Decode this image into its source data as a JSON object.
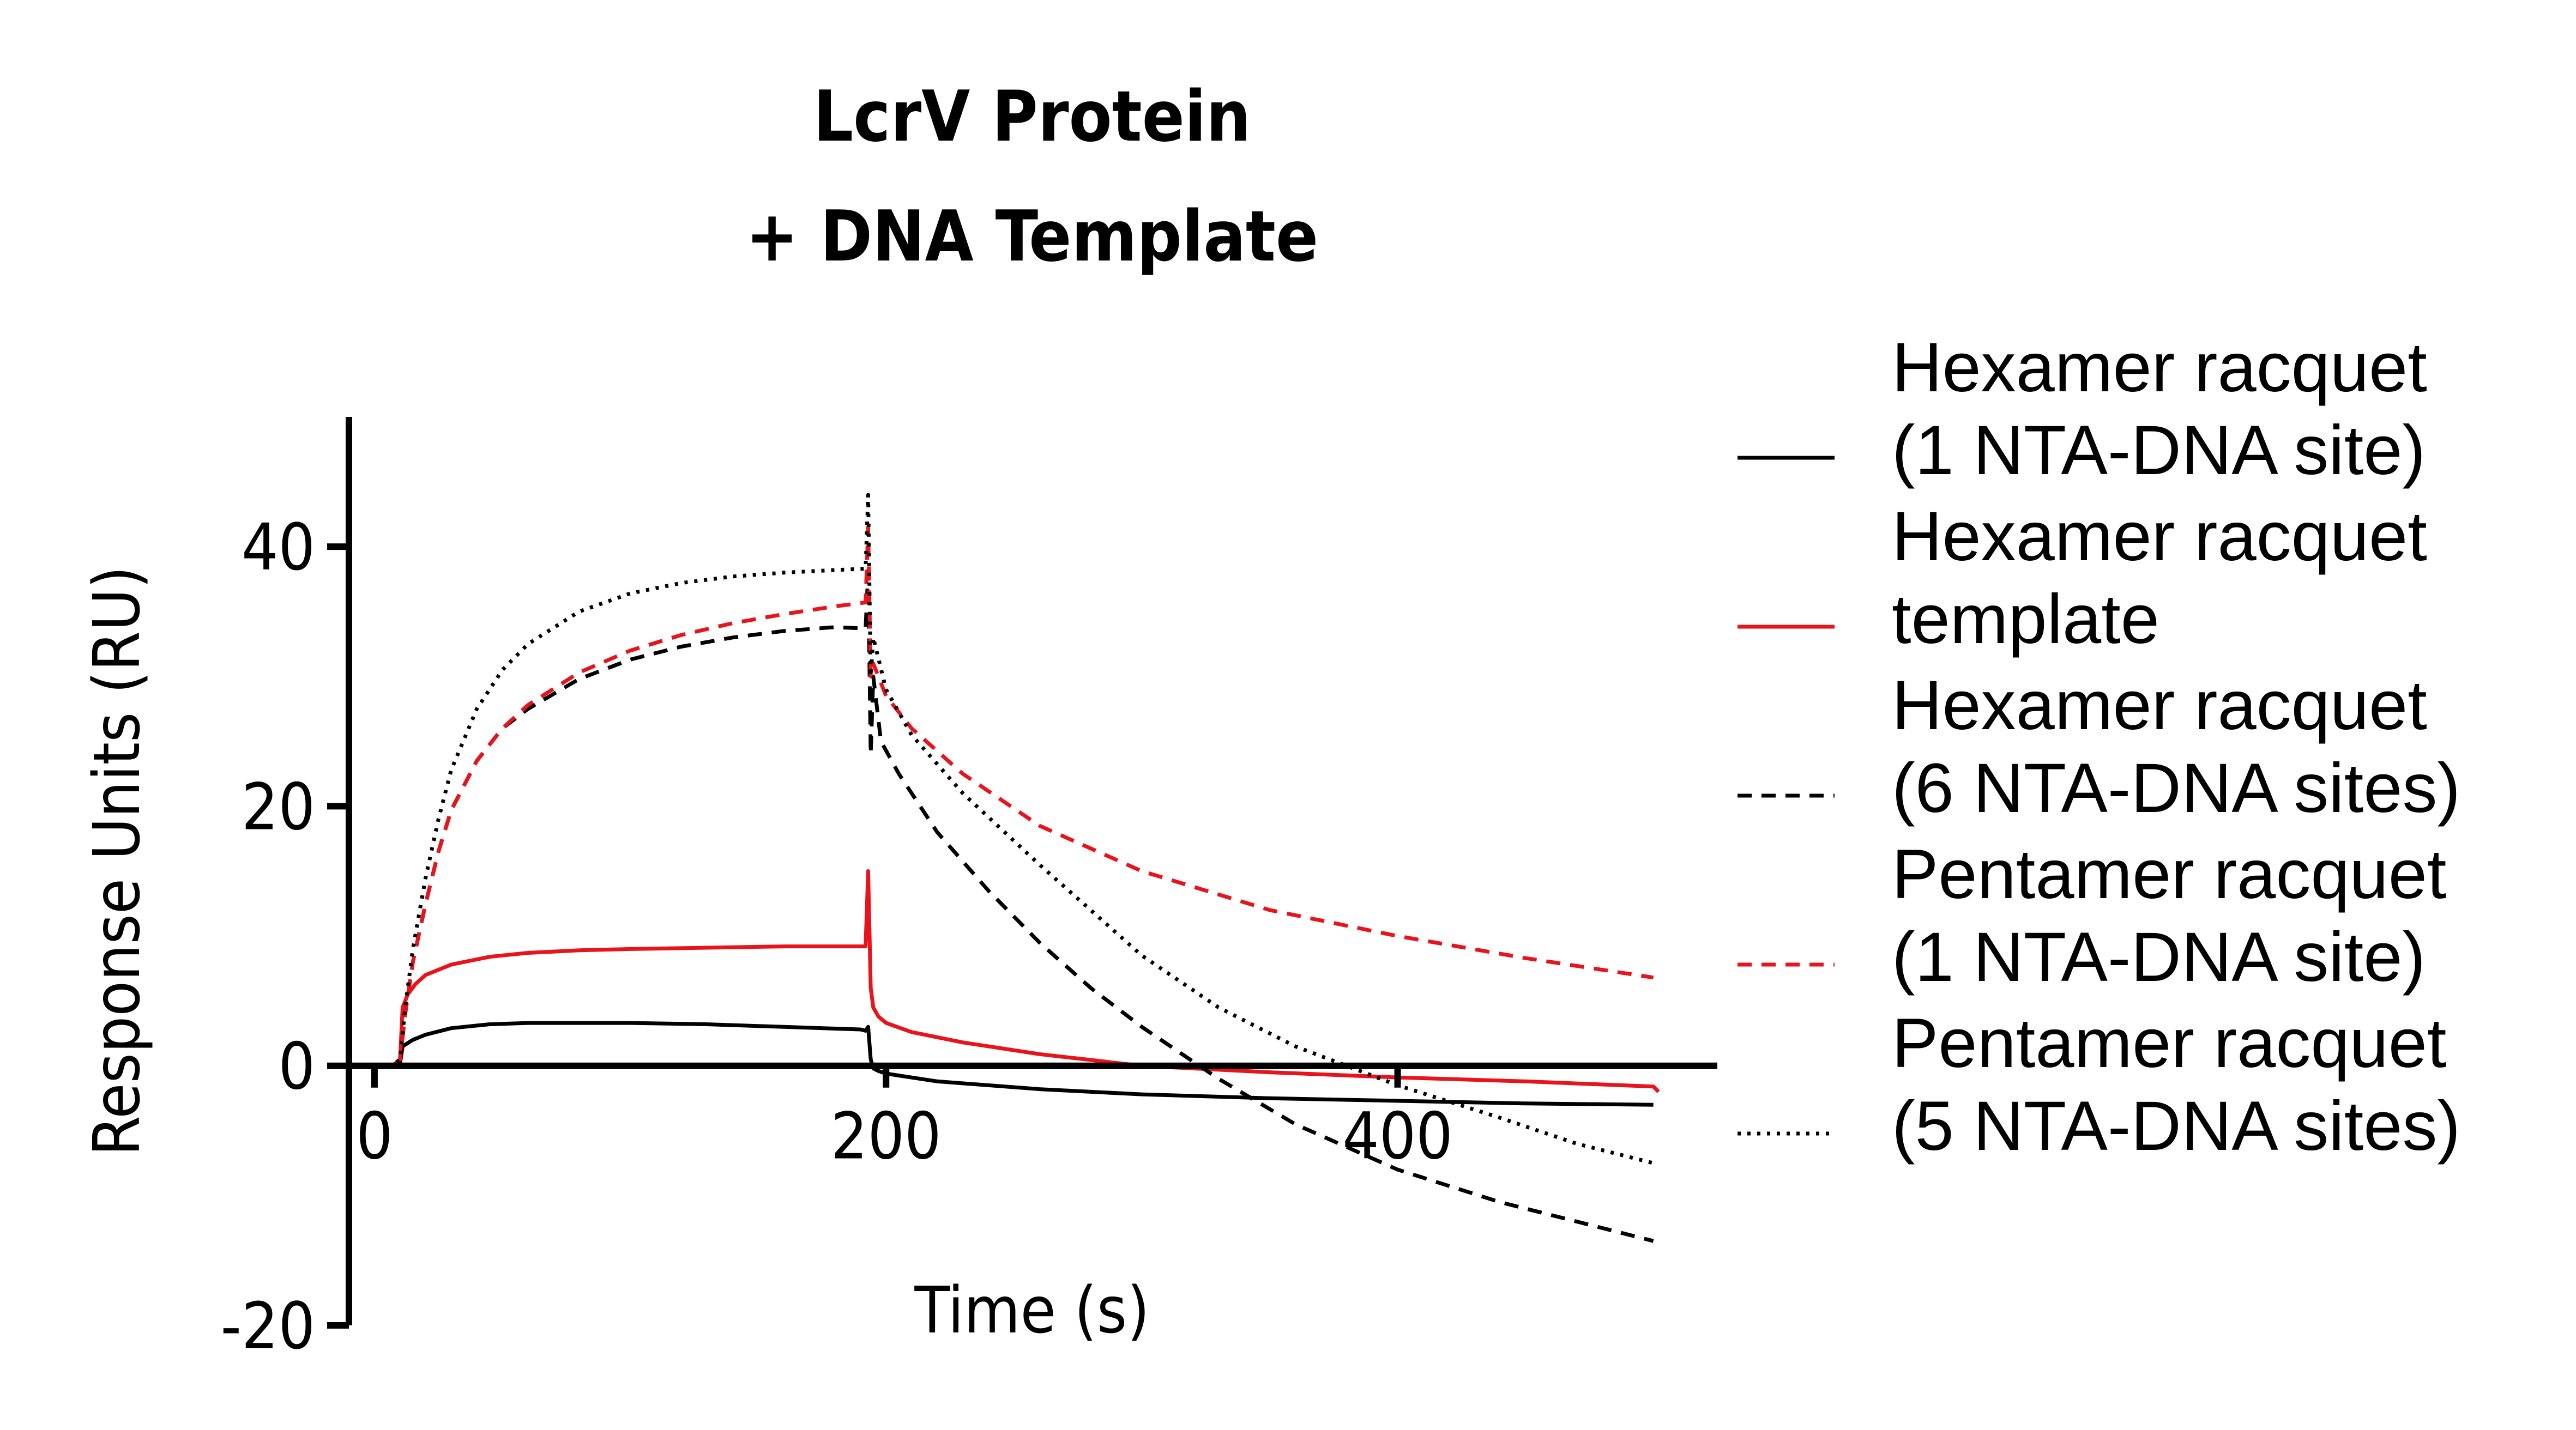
{
  "chart_data": {
    "type": "line",
    "title_lines": [
      "LcrV Protein",
      "+ DNA Template"
    ],
    "xlabel": "Time  (s)",
    "ylabel": "Response Units  (RU)",
    "xlim": [
      -10,
      525
    ],
    "ylim": [
      -20,
      50
    ],
    "xticks": [
      0,
      200,
      400
    ],
    "yticks": [
      -20,
      0,
      20,
      40
    ],
    "x_tick_labels": [
      "0",
      "200",
      "400"
    ],
    "y_tick_labels": [
      "-20",
      "0",
      "20",
      "40"
    ],
    "grid": false,
    "legend_position": "right",
    "series": [
      {
        "name": "Hexamer racquet\n(1 NTA-DNA site)",
        "legend_lines": [
          "Hexamer racquet",
          "(1 NTA-DNA site)"
        ],
        "color": "#000000",
        "dash": "solid",
        "x": [
          -10,
          7,
          10,
          11,
          15,
          20,
          30,
          45,
          60,
          80,
          100,
          130,
          160,
          190,
          192,
          193,
          194,
          195,
          197,
          200,
          220,
          260,
          300,
          350,
          400,
          450,
          500
        ],
        "y": [
          0,
          0,
          0.2,
          1.5,
          2.0,
          2.4,
          2.9,
          3.2,
          3.3,
          3.3,
          3.3,
          3.2,
          3.0,
          2.8,
          2.7,
          3.0,
          0.5,
          -0.2,
          -0.4,
          -0.6,
          -1.2,
          -1.8,
          -2.2,
          -2.5,
          -2.7,
          -2.9,
          -3.0
        ]
      },
      {
        "name": "Hexamer racquet\ntemplate",
        "legend_lines": [
          "Hexamer racquet",
          "template"
        ],
        "color": "#e8131b",
        "dash": "solid",
        "x": [
          -10,
          7,
          10,
          11,
          13,
          16,
          20,
          30,
          45,
          60,
          80,
          100,
          130,
          160,
          190,
          192,
          193,
          194,
          195,
          197,
          200,
          210,
          230,
          260,
          300,
          350,
          400,
          450,
          500,
          502
        ],
        "y": [
          0,
          0,
          0.5,
          4.5,
          5.5,
          6.3,
          7.0,
          7.8,
          8.4,
          8.7,
          8.9,
          9.0,
          9.1,
          9.2,
          9.2,
          9.2,
          15.0,
          6.0,
          4.5,
          3.8,
          3.3,
          2.6,
          1.8,
          0.9,
          0.0,
          -0.5,
          -0.9,
          -1.2,
          -1.6,
          -2.0
        ]
      },
      {
        "name": "Hexamer racquet\n(6 NTA-DNA sites)",
        "legend_lines": [
          "Hexamer racquet",
          "(6 NTA-DNA sites)"
        ],
        "color": "#000000",
        "dash": "dashed",
        "x": [
          -10,
          7,
          10,
          12,
          15,
          20,
          25,
          30,
          40,
          50,
          60,
          80,
          100,
          120,
          140,
          160,
          180,
          192,
          193,
          194,
          195,
          198,
          205,
          220,
          240,
          260,
          280,
          300,
          330,
          360,
          400,
          440,
          470,
          500
        ],
        "y": [
          0,
          0,
          0.5,
          4.0,
          8.0,
          12.5,
          16.5,
          19.7,
          23.5,
          26.0,
          27.5,
          29.8,
          31.3,
          32.3,
          33.0,
          33.5,
          33.8,
          33.7,
          38.0,
          24.0,
          30.0,
          25.0,
          22.5,
          18.0,
          13.5,
          9.5,
          6.0,
          3.0,
          -1.0,
          -4.5,
          -8.0,
          -10.5,
          -12.0,
          -13.5
        ]
      },
      {
        "name": "Pentamer racquet\n(1 NTA-DNA site)",
        "legend_lines": [
          "Pentamer racquet",
          "(1 NTA-DNA site)"
        ],
        "color": "#e8131b",
        "dash": "dashed",
        "x": [
          -10,
          7,
          10,
          12,
          15,
          20,
          25,
          30,
          40,
          50,
          60,
          80,
          100,
          120,
          140,
          160,
          180,
          192,
          193,
          194,
          195,
          200,
          210,
          230,
          260,
          300,
          350,
          400,
          450,
          500
        ],
        "y": [
          0,
          0,
          0.5,
          4.0,
          8.0,
          12.5,
          16.5,
          19.7,
          23.5,
          26.0,
          27.8,
          30.3,
          32.0,
          33.2,
          34.1,
          34.8,
          35.4,
          35.7,
          41.5,
          30.0,
          31.0,
          28.5,
          26.0,
          22.5,
          18.5,
          15.0,
          12.0,
          10.0,
          8.3,
          6.8
        ]
      },
      {
        "name": "Pentamer racquet\n(5 NTA-DNA sites)",
        "legend_lines": [
          "Pentamer racquet",
          "(5 NTA-DNA sites)"
        ],
        "color": "#000000",
        "dash": "dotted",
        "x": [
          -10,
          7,
          10,
          12,
          15,
          20,
          25,
          30,
          40,
          50,
          60,
          80,
          100,
          120,
          140,
          160,
          180,
          192,
          193,
          194,
          195,
          200,
          210,
          230,
          260,
          300,
          330,
          360,
          400,
          440,
          470,
          500
        ],
        "y": [
          0,
          0,
          0.5,
          4.5,
          9.0,
          14.5,
          19.0,
          22.8,
          27.5,
          30.5,
          32.5,
          35.0,
          36.4,
          37.2,
          37.7,
          38.0,
          38.2,
          38.3,
          44.0,
          30.0,
          33.0,
          29.0,
          25.5,
          21.0,
          15.5,
          8.5,
          4.5,
          1.5,
          -1.5,
          -4.0,
          -6.0,
          -7.5
        ]
      }
    ]
  }
}
